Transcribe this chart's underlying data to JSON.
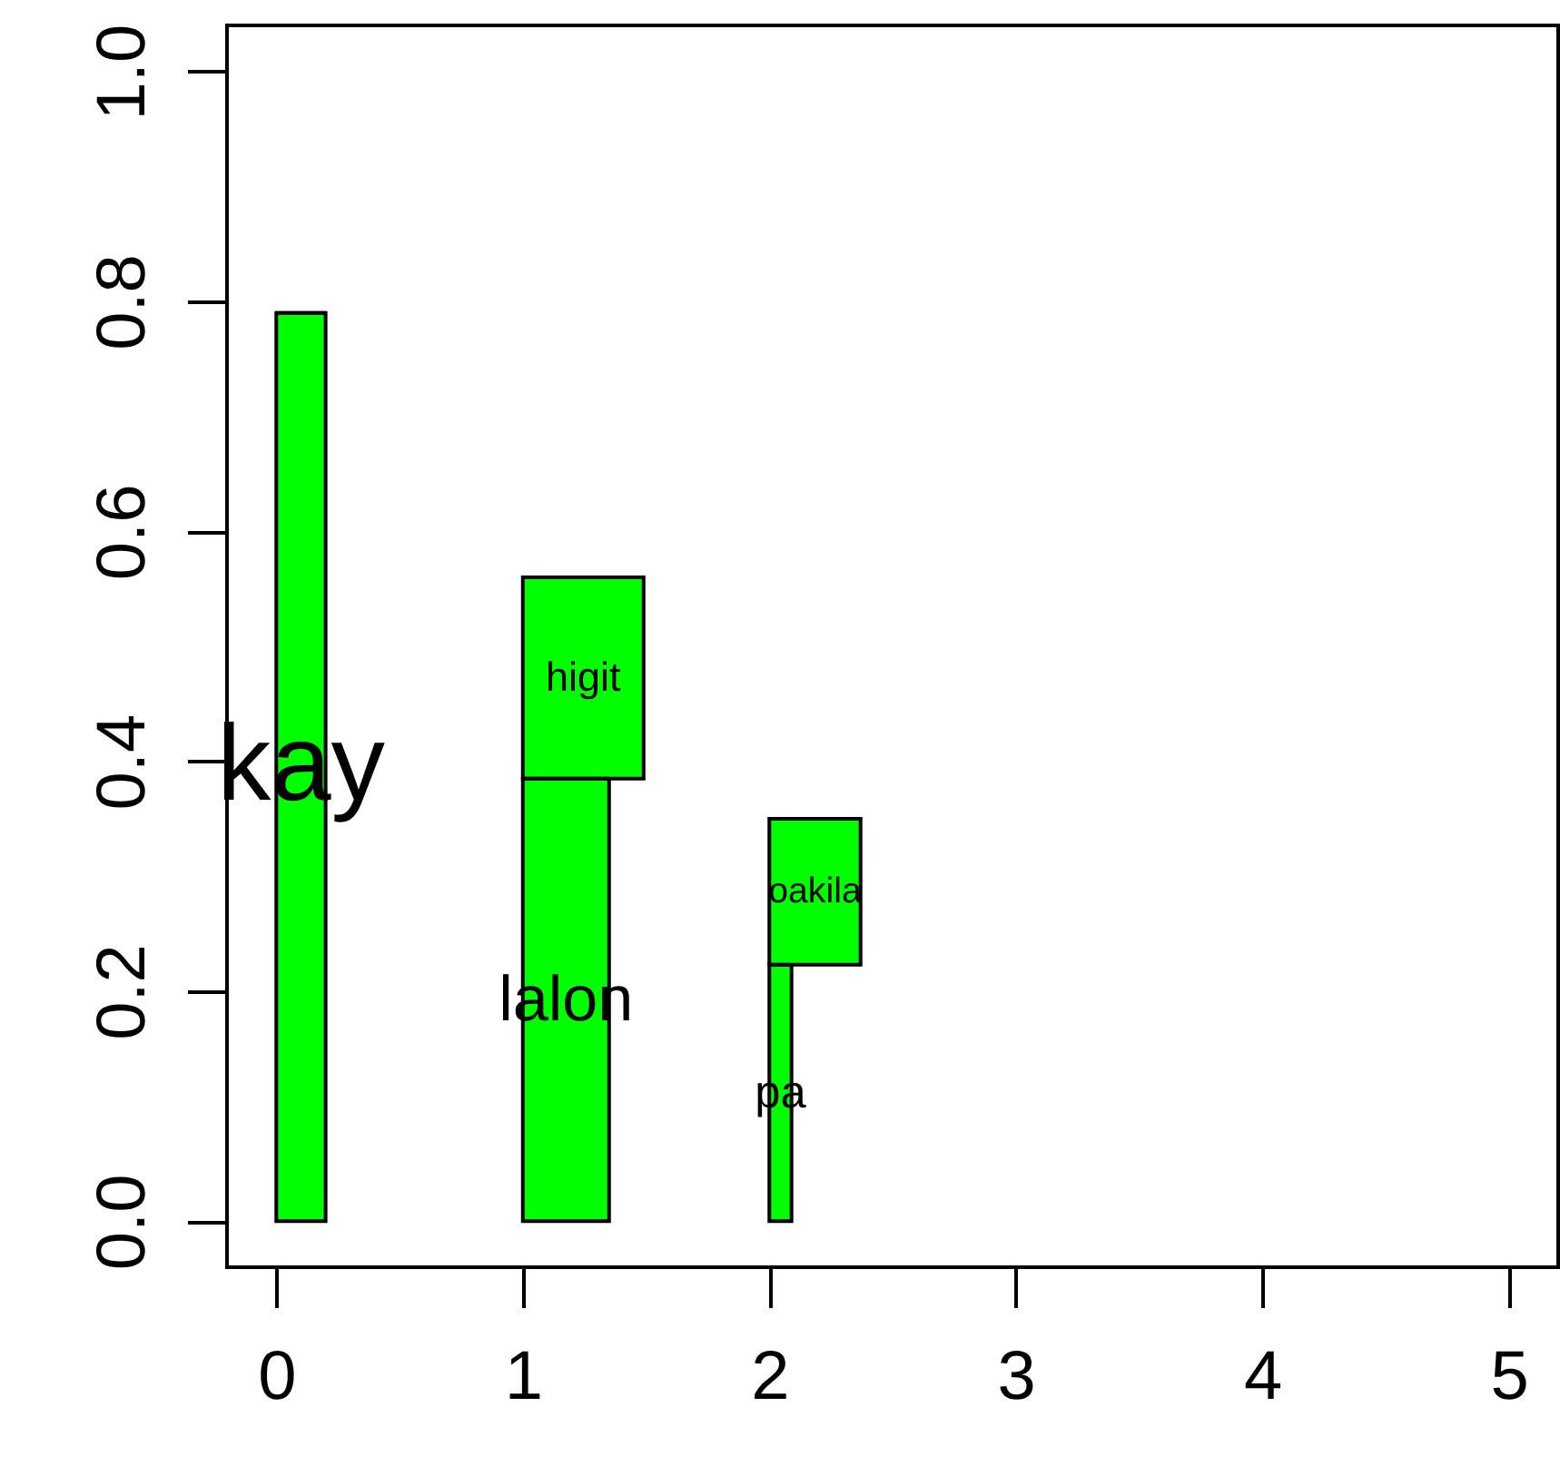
{
  "chart_data": {
    "type": "bar",
    "x": [
      0.1,
      1.175,
      1.245,
      2.045,
      2.185
    ],
    "base": [
      0,
      0,
      0.385,
      0,
      0.223
    ],
    "values": [
      0.79,
      0.385,
      0.175,
      0.223,
      0.127
    ],
    "xerrors": [
      0.1,
      0.175,
      0.245,
      0.045,
      0.185
    ],
    "value_labels": [
      "kay",
      "lalon",
      "higit",
      "pa",
      "oakila"
    ],
    "color": "#00ff00",
    "xlim": [
      -0.2,
      5.2
    ],
    "xticks": [
      0,
      1,
      2,
      3,
      4,
      5
    ],
    "ylim": [
      -0.04,
      1.04
    ],
    "yticks": [
      {
        "value": 0,
        "label": "0.0"
      },
      {
        "value": 0.2,
        "label": "0.2"
      },
      {
        "value": 0.4,
        "label": "0.4"
      },
      {
        "value": 0.6,
        "label": "0.6"
      },
      {
        "value": 0.8,
        "label": "0.8"
      },
      {
        "value": 1,
        "label": "1.0"
      }
    ],
    "grid": false
  }
}
